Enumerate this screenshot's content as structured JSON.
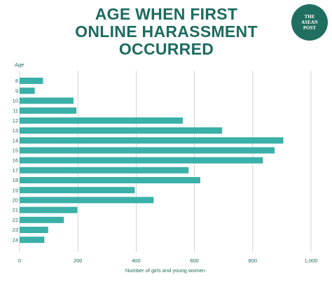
{
  "title": {
    "line1": "AGE WHEN FIRST",
    "line2": "ONLINE HARASSMENT",
    "line3": "OCCURRED"
  },
  "logo": {
    "line1": "THE",
    "line2": "ASEAN",
    "line3": "POST",
    "color": "#1f6e5f"
  },
  "colors": {
    "bar": "#3ab0a8",
    "title": "#1c6b5f",
    "grid": "#c9c9c9",
    "axis_text": "#1f6e5f"
  },
  "chart_data": {
    "type": "bar",
    "orientation": "horizontal",
    "title": "AGE WHEN FIRST ONLINE HARASSMENT OCCURRED",
    "ylabel": "Age",
    "xlabel": "Number of girls and young women",
    "categories": [
      "8",
      "9",
      "10",
      "11",
      "12",
      "13",
      "14",
      "15",
      "16",
      "17",
      "18",
      "19",
      "20",
      "21",
      "22",
      "23",
      "24"
    ],
    "values": [
      80,
      52,
      185,
      195,
      560,
      695,
      905,
      875,
      835,
      580,
      620,
      395,
      460,
      198,
      152,
      98,
      85
    ],
    "xlim": [
      0,
      1000
    ],
    "xticks": [
      "0",
      "200",
      "400",
      "600",
      "800",
      "1,000"
    ],
    "grid": "vertical"
  }
}
